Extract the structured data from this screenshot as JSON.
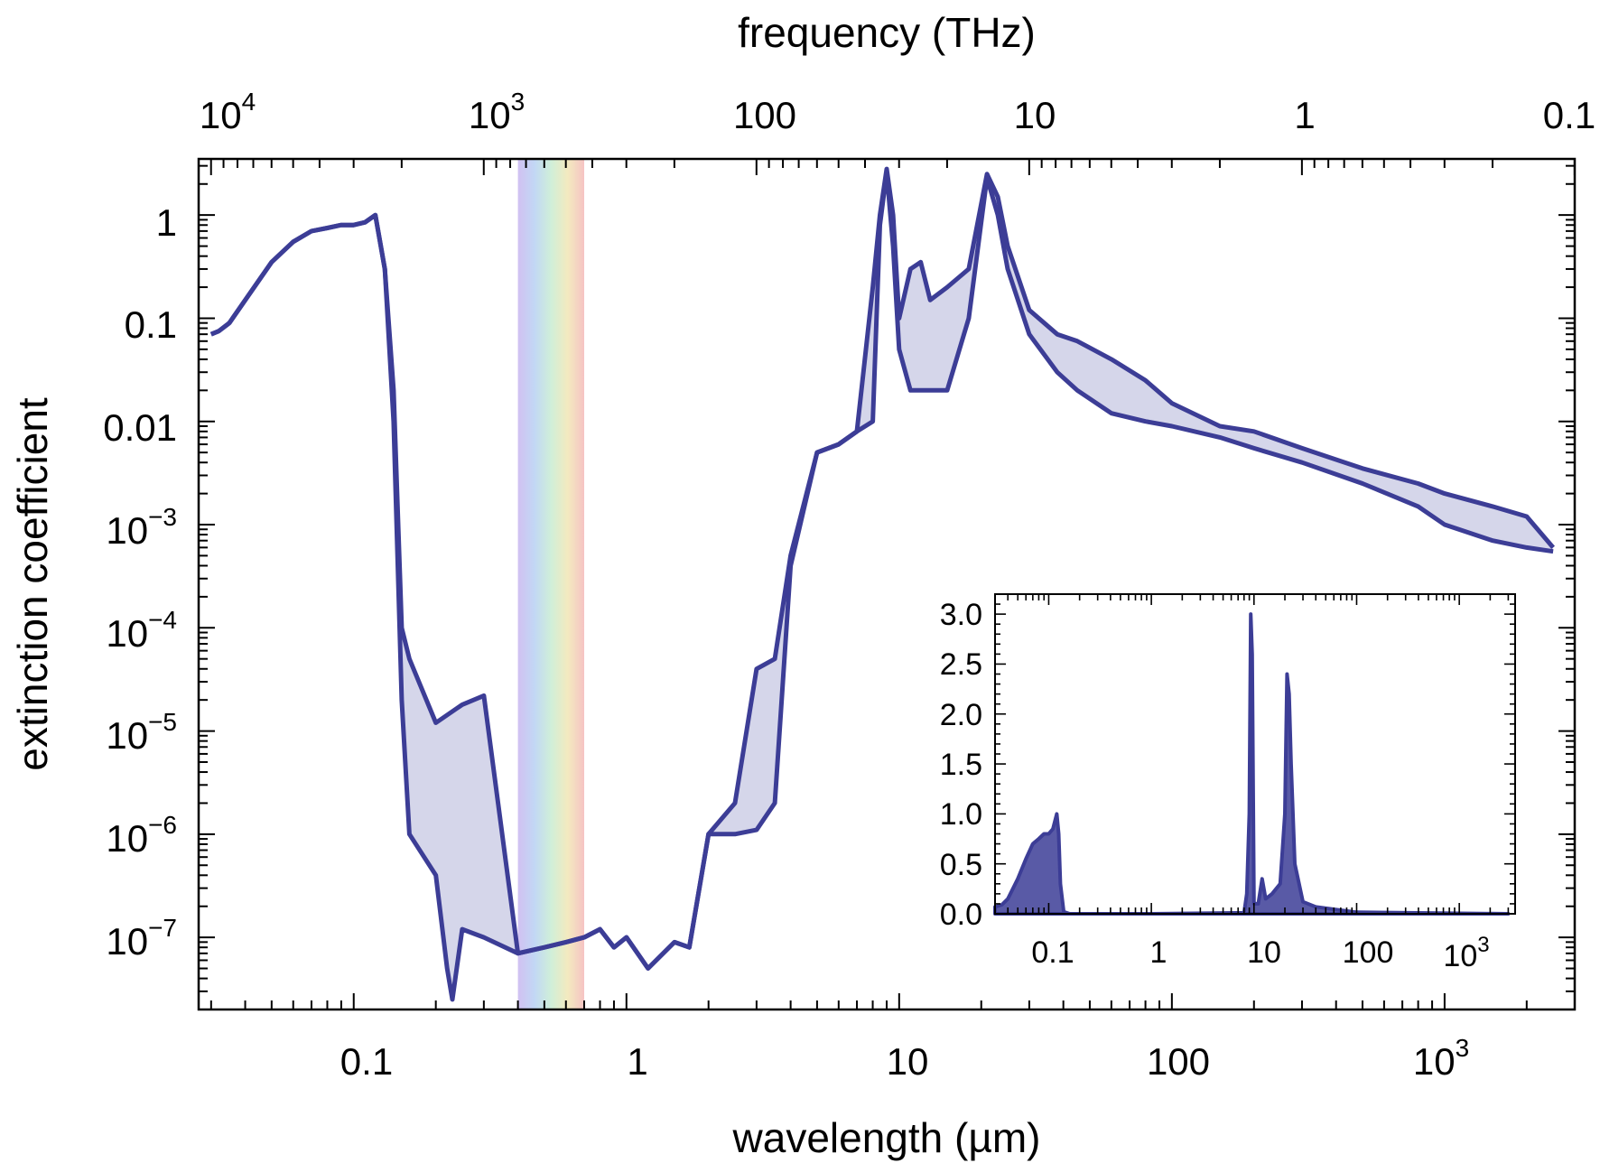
{
  "chart_data": [
    {
      "type": "area",
      "name": "main",
      "title": "",
      "xlabel": "wavelength (µm)",
      "x2label": "frequency (THz)",
      "ylabel": "extinction coefficient",
      "xscale": "log",
      "yscale": "log",
      "xlim": [
        0.027,
        3000
      ],
      "ylim": [
        2e-08,
        3.5
      ],
      "x2lim": [
        10000,
        0.1
      ],
      "grid": false,
      "xticks": [
        {
          "value": 0.1,
          "mant": "0.1",
          "exp": ""
        },
        {
          "value": 1,
          "mant": "1",
          "exp": ""
        },
        {
          "value": 10,
          "mant": "10",
          "exp": ""
        },
        {
          "value": 100,
          "mant": "100",
          "exp": ""
        },
        {
          "value": 1000,
          "mant": "10",
          "exp": "3"
        }
      ],
      "x2ticks": [
        {
          "value": 10000,
          "mant": "10",
          "exp": "4"
        },
        {
          "value": 1000,
          "mant": "10",
          "exp": "3"
        },
        {
          "value": 100,
          "mant": "100",
          "exp": ""
        },
        {
          "value": 10,
          "mant": "10",
          "exp": ""
        },
        {
          "value": 1,
          "mant": "1",
          "exp": ""
        },
        {
          "value": 0.1,
          "mant": "0.1",
          "exp": ""
        }
      ],
      "yticks": [
        {
          "value": 1,
          "mant": "1",
          "exp": ""
        },
        {
          "value": 0.1,
          "mant": "0.1",
          "exp": ""
        },
        {
          "value": 0.01,
          "mant": "0.01",
          "exp": ""
        },
        {
          "value": 0.001,
          "mant": "10",
          "exp": "−3"
        },
        {
          "value": 0.0001,
          "mant": "10",
          "exp": "−4"
        },
        {
          "value": 1e-05,
          "mant": "10",
          "exp": "−5"
        },
        {
          "value": 1e-06,
          "mant": "10",
          "exp": "−6"
        },
        {
          "value": 1e-07,
          "mant": "10",
          "exp": "−7"
        }
      ],
      "visible_band": {
        "from": 0.4,
        "to": 0.7
      },
      "series": [
        {
          "name": "upper",
          "x": [
            0.03,
            0.032,
            0.035,
            0.04,
            0.05,
            0.06,
            0.07,
            0.08,
            0.09,
            0.1,
            0.11,
            0.12,
            0.13,
            0.14,
            0.15,
            0.16,
            0.2,
            0.25,
            0.3,
            0.4,
            0.5,
            0.6,
            0.7,
            0.8,
            0.9,
            1.0,
            1.2,
            1.5,
            1.7,
            2.0,
            2.5,
            3.0,
            3.5,
            4.0,
            5.0,
            6.0,
            7.0,
            8.0,
            8.5,
            9.0,
            9.5,
            10.0,
            11.0,
            12.0,
            13.0,
            15.0,
            18.0,
            21.0,
            23.0,
            25.0,
            30.0,
            38.0,
            45.0,
            60.0,
            80.0,
            100.0,
            150.0,
            200.0,
            300.0,
            500.0,
            800.0,
            1000.0,
            1500.0,
            2000.0,
            2500.0
          ],
          "values": [
            0.07,
            0.075,
            0.09,
            0.15,
            0.35,
            0.55,
            0.7,
            0.75,
            0.8,
            0.8,
            0.85,
            1.0,
            0.3,
            0.02,
            0.0001,
            5e-05,
            1.2e-05,
            1.8e-05,
            2.2e-05,
            7e-08,
            8e-08,
            9e-08,
            1e-07,
            1.2e-07,
            8e-08,
            1e-07,
            5e-08,
            9e-08,
            8e-08,
            1e-06,
            2e-06,
            4e-05,
            5e-05,
            0.0005,
            0.005,
            0.006,
            0.008,
            0.2,
            1.0,
            2.8,
            1.0,
            0.1,
            0.3,
            0.35,
            0.15,
            0.2,
            0.3,
            2.5,
            1.5,
            0.5,
            0.12,
            0.07,
            0.06,
            0.04,
            0.025,
            0.015,
            0.009,
            0.008,
            0.0055,
            0.0035,
            0.0025,
            0.002,
            0.0015,
            0.0012,
            0.0006
          ]
        },
        {
          "name": "lower",
          "x": [
            0.03,
            0.032,
            0.035,
            0.04,
            0.05,
            0.06,
            0.07,
            0.08,
            0.09,
            0.1,
            0.11,
            0.12,
            0.13,
            0.14,
            0.15,
            0.16,
            0.2,
            0.22,
            0.23,
            0.25,
            0.3,
            0.4,
            0.5,
            0.6,
            0.7,
            0.8,
            0.9,
            1.0,
            1.2,
            1.5,
            1.7,
            2.0,
            2.5,
            3.0,
            3.5,
            4.0,
            5.0,
            6.0,
            7.0,
            8.0,
            8.5,
            9.0,
            9.5,
            10.0,
            11.0,
            12.0,
            13.0,
            15.0,
            18.0,
            21.0,
            23.0,
            25.0,
            30.0,
            38.0,
            45.0,
            60.0,
            80.0,
            100.0,
            150.0,
            200.0,
            300.0,
            500.0,
            800.0,
            1000.0,
            1500.0,
            2000.0,
            2500.0
          ],
          "values": [
            0.07,
            0.075,
            0.09,
            0.15,
            0.35,
            0.55,
            0.7,
            0.75,
            0.8,
            0.8,
            0.85,
            1.0,
            0.3,
            0.01,
            2e-05,
            1e-06,
            4e-07,
            5e-08,
            2.5e-08,
            1.2e-07,
            1e-07,
            7e-08,
            8e-08,
            9e-08,
            1e-07,
            1.2e-07,
            8e-08,
            1e-07,
            5e-08,
            9e-08,
            8e-08,
            1e-06,
            1e-06,
            1.1e-06,
            2e-06,
            0.0004,
            0.005,
            0.006,
            0.008,
            0.01,
            0.8,
            2.6,
            0.5,
            0.05,
            0.02,
            0.02,
            0.02,
            0.02,
            0.1,
            2.3,
            1.0,
            0.3,
            0.07,
            0.03,
            0.02,
            0.012,
            0.01,
            0.009,
            0.007,
            0.0055,
            0.004,
            0.0025,
            0.0015,
            0.001,
            0.0007,
            0.0006,
            0.00055
          ]
        }
      ]
    },
    {
      "type": "area",
      "name": "inset",
      "xscale": "log",
      "yscale": "linear",
      "xlim": [
        0.03,
        3500
      ],
      "ylim": [
        0,
        3.2
      ],
      "grid": false,
      "xticks": [
        {
          "value": 0.1,
          "mant": "0.1",
          "exp": ""
        },
        {
          "value": 1,
          "mant": "1",
          "exp": ""
        },
        {
          "value": 10,
          "mant": "10",
          "exp": ""
        },
        {
          "value": 100,
          "mant": "100",
          "exp": ""
        },
        {
          "value": 1000,
          "mant": "10",
          "exp": "3"
        }
      ],
      "yticks": [
        {
          "value": 0.0,
          "label": "0.0"
        },
        {
          "value": 0.5,
          "label": "0.5"
        },
        {
          "value": 1.0,
          "label": "1.0"
        },
        {
          "value": 1.5,
          "label": "1.5"
        },
        {
          "value": 2.0,
          "label": "2.0"
        },
        {
          "value": 2.5,
          "label": "2.5"
        },
        {
          "value": 3.0,
          "label": "3.0"
        }
      ],
      "series": [
        {
          "name": "extinction-linear",
          "x": [
            0.03,
            0.035,
            0.04,
            0.05,
            0.06,
            0.07,
            0.08,
            0.09,
            0.1,
            0.11,
            0.12,
            0.125,
            0.13,
            0.14,
            0.16,
            1,
            8.0,
            8.5,
            9.0,
            9.3,
            9.6,
            10.0,
            11.0,
            12.0,
            13.0,
            15.0,
            18.0,
            20.0,
            21.0,
            22.0,
            23.0,
            25.0,
            30.0,
            40.0,
            100.0,
            3000.0
          ],
          "values": [
            0.07,
            0.09,
            0.15,
            0.35,
            0.55,
            0.7,
            0.75,
            0.8,
            0.8,
            0.85,
            1.0,
            0.8,
            0.3,
            0.02,
            0.0,
            0.0,
            0.01,
            0.2,
            1.0,
            3.0,
            2.6,
            0.1,
            0.1,
            0.35,
            0.15,
            0.2,
            0.3,
            1.0,
            2.4,
            2.2,
            1.5,
            0.5,
            0.12,
            0.07,
            0.015,
            0.0
          ]
        }
      ]
    }
  ]
}
